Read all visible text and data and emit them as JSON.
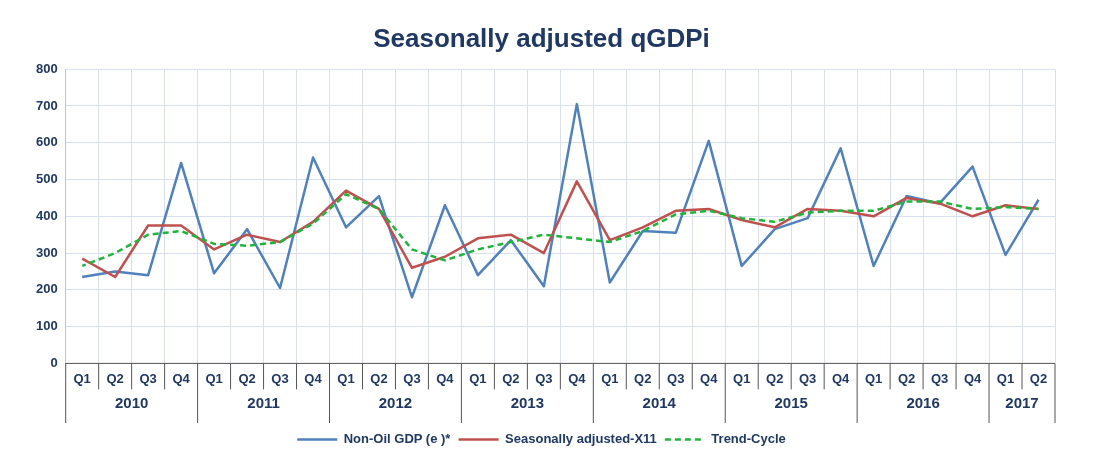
{
  "chart_data": {
    "type": "line",
    "title": "Seasonally adjusted qGDPi",
    "categories": [
      "Q1",
      "Q2",
      "Q3",
      "Q4",
      "Q1",
      "Q2",
      "Q3",
      "Q4",
      "Q1",
      "Q2",
      "Q3",
      "Q4",
      "Q1",
      "Q2",
      "Q3",
      "Q4",
      "Q1",
      "Q2",
      "Q3",
      "Q4",
      "Q1",
      "Q2",
      "Q3",
      "Q4",
      "Q1",
      "Q2",
      "Q3",
      "Q4",
      "Q1",
      "Q2"
    ],
    "annotations": [
      "2010",
      "2011",
      "2012",
      "2013",
      "2014",
      "2015",
      "2016",
      "2017"
    ],
    "series": [
      {
        "name": "Non-Oil GDP (e )*",
        "color": "#4f81bd",
        "line_style": "solid",
        "values": [
          235,
          250,
          240,
          545,
          245,
          365,
          205,
          560,
          370,
          455,
          180,
          430,
          240,
          335,
          210,
          705,
          220,
          360,
          355,
          605,
          265,
          365,
          395,
          585,
          265,
          455,
          435,
          535,
          295,
          445
        ]
      },
      {
        "name": "Seasonally adjusted-X11",
        "color": "#c0504d",
        "line_style": "solid",
        "values": [
          285,
          235,
          375,
          375,
          310,
          350,
          330,
          385,
          470,
          420,
          260,
          290,
          340,
          350,
          300,
          495,
          335,
          370,
          415,
          420,
          390,
          370,
          420,
          415,
          400,
          450,
          435,
          400,
          430,
          420
        ]
      },
      {
        "name": "Trend-Cycle",
        "color": "#1fb53a",
        "line_style": "dashed",
        "values": [
          265,
          300,
          350,
          360,
          325,
          320,
          330,
          380,
          460,
          420,
          310,
          280,
          310,
          330,
          350,
          340,
          330,
          360,
          405,
          415,
          395,
          385,
          410,
          415,
          415,
          440,
          440,
          420,
          425,
          420
        ]
      }
    ],
    "ylim": [
      0,
      800
    ],
    "yticks": [
      0,
      100,
      200,
      300,
      400,
      500,
      600,
      700,
      800
    ],
    "grid": true,
    "legend": "bottom",
    "marker": "none"
  }
}
